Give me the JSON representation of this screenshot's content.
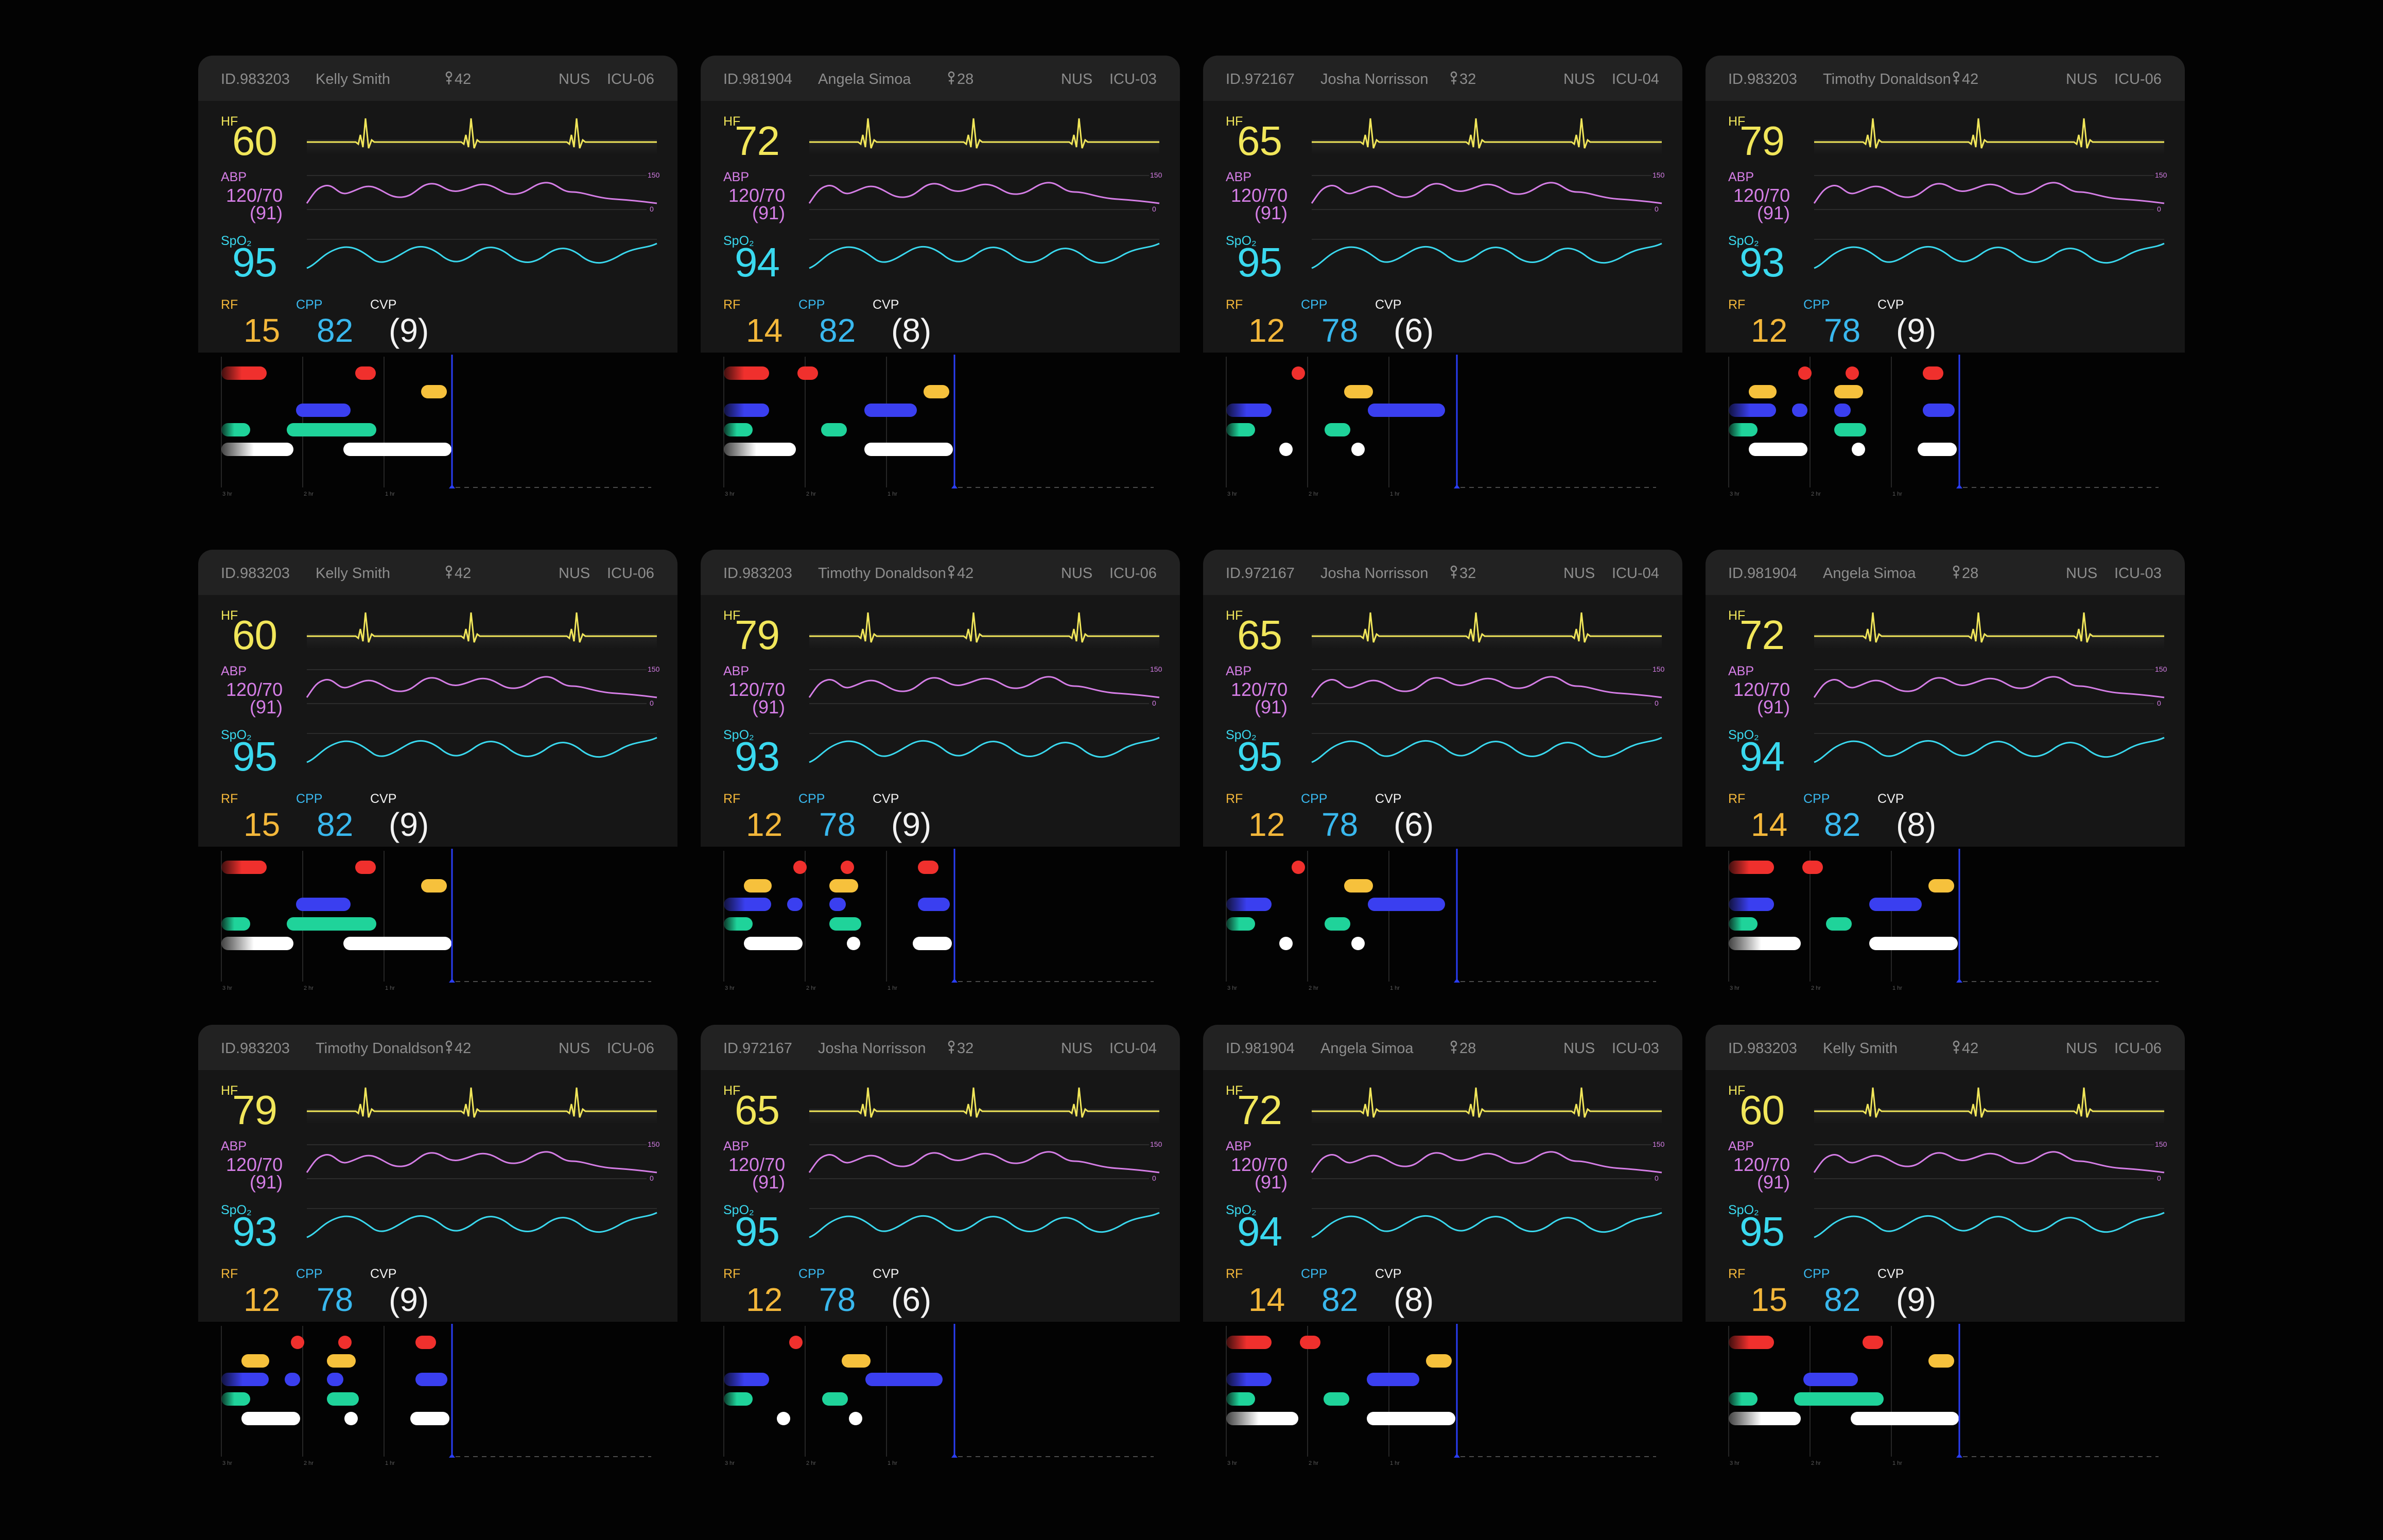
{
  "labels": {
    "hf": "HF",
    "abp": "ABP",
    "spo2": "SpO₂",
    "rf": "RF",
    "cpp": "CPP",
    "cvp": "CVP",
    "abp_scale_top": "150",
    "abp_scale_bottom": "0",
    "tl_ticks": [
      "3 hr",
      "2 hr",
      "1 hr"
    ]
  },
  "colors": {
    "hf": "#f1e65a",
    "abp": "#d57ee6",
    "spo2": "#3ad9ef",
    "rf": "#f3b73a",
    "cpp": "#39b8ee",
    "cvp": "#f2f2f2",
    "event_red": "#f0302d",
    "event_yellow": "#f6c13c",
    "event_blue": "#3a3ff0",
    "event_green": "#1fd39a",
    "event_white": "#ffffff",
    "now_line": "#2a3ef5"
  },
  "monitors": [
    {
      "id": "ID.983203",
      "name": "Kelly Smith",
      "age": "42",
      "unit": "NUS",
      "bed": "ICU-06",
      "hf": "60",
      "abp_sys_dia": "120/70",
      "abp_mean": "(91)",
      "spo2": "95",
      "rf": "15",
      "cpp": "82",
      "cvp": "(9)",
      "timeline": "A"
    },
    {
      "id": "ID.981904",
      "name": "Angela Simoa",
      "age": "28",
      "unit": "NUS",
      "bed": "ICU-03",
      "hf": "72",
      "abp_sys_dia": "120/70",
      "abp_mean": "(91)",
      "spo2": "94",
      "rf": "14",
      "cpp": "82",
      "cvp": "(8)",
      "timeline": "B"
    },
    {
      "id": "ID.972167",
      "name": "Josha Norrisson",
      "age": "32",
      "unit": "NUS",
      "bed": "ICU-04",
      "hf": "65",
      "abp_sys_dia": "120/70",
      "abp_mean": "(91)",
      "spo2": "95",
      "rf": "12",
      "cpp": "78",
      "cvp": "(6)",
      "timeline": "C"
    },
    {
      "id": "ID.983203",
      "name": "Timothy Donaldson",
      "age": "42",
      "unit": "NUS",
      "bed": "ICU-06",
      "hf": "79",
      "abp_sys_dia": "120/70",
      "abp_mean": "(91)",
      "spo2": "93",
      "rf": "12",
      "cpp": "78",
      "cvp": "(9)",
      "timeline": "D"
    },
    {
      "id": "ID.983203",
      "name": "Kelly Smith",
      "age": "42",
      "unit": "NUS",
      "bed": "ICU-06",
      "hf": "60",
      "abp_sys_dia": "120/70",
      "abp_mean": "(91)",
      "spo2": "95",
      "rf": "15",
      "cpp": "82",
      "cvp": "(9)",
      "timeline": "A"
    },
    {
      "id": "ID.983203",
      "name": "Timothy Donaldson",
      "age": "42",
      "unit": "NUS",
      "bed": "ICU-06",
      "hf": "79",
      "abp_sys_dia": "120/70",
      "abp_mean": "(91)",
      "spo2": "93",
      "rf": "12",
      "cpp": "78",
      "cvp": "(9)",
      "timeline": "D"
    },
    {
      "id": "ID.972167",
      "name": "Josha Norrisson",
      "age": "32",
      "unit": "NUS",
      "bed": "ICU-04",
      "hf": "65",
      "abp_sys_dia": "120/70",
      "abp_mean": "(91)",
      "spo2": "95",
      "rf": "12",
      "cpp": "78",
      "cvp": "(6)",
      "timeline": "C"
    },
    {
      "id": "ID.981904",
      "name": "Angela Simoa",
      "age": "28",
      "unit": "NUS",
      "bed": "ICU-03",
      "hf": "72",
      "abp_sys_dia": "120/70",
      "abp_mean": "(91)",
      "spo2": "94",
      "rf": "14",
      "cpp": "82",
      "cvp": "(8)",
      "timeline": "B"
    },
    {
      "id": "ID.983203",
      "name": "Timothy Donaldson",
      "age": "42",
      "unit": "NUS",
      "bed": "ICU-06",
      "hf": "79",
      "abp_sys_dia": "120/70",
      "abp_mean": "(91)",
      "spo2": "93",
      "rf": "12",
      "cpp": "78",
      "cvp": "(9)",
      "timeline": "D"
    },
    {
      "id": "ID.972167",
      "name": "Josha Norrisson",
      "age": "32",
      "unit": "NUS",
      "bed": "ICU-04",
      "hf": "65",
      "abp_sys_dia": "120/70",
      "abp_mean": "(91)",
      "spo2": "95",
      "rf": "12",
      "cpp": "78",
      "cvp": "(6)",
      "timeline": "C"
    },
    {
      "id": "ID.981904",
      "name": "Angela Simoa",
      "age": "28",
      "unit": "NUS",
      "bed": "ICU-03",
      "hf": "72",
      "abp_sys_dia": "120/70",
      "abp_mean": "(91)",
      "spo2": "94",
      "rf": "14",
      "cpp": "82",
      "cvp": "(8)",
      "timeline": "B"
    },
    {
      "id": "ID.983203",
      "name": "Kelly Smith",
      "age": "42",
      "unit": "NUS",
      "bed": "ICU-06",
      "hf": "60",
      "abp_sys_dia": "120/70",
      "abp_mean": "(91)",
      "spo2": "95",
      "rf": "15",
      "cpp": "82",
      "cvp": "(9)",
      "timeline": "A"
    }
  ]
}
